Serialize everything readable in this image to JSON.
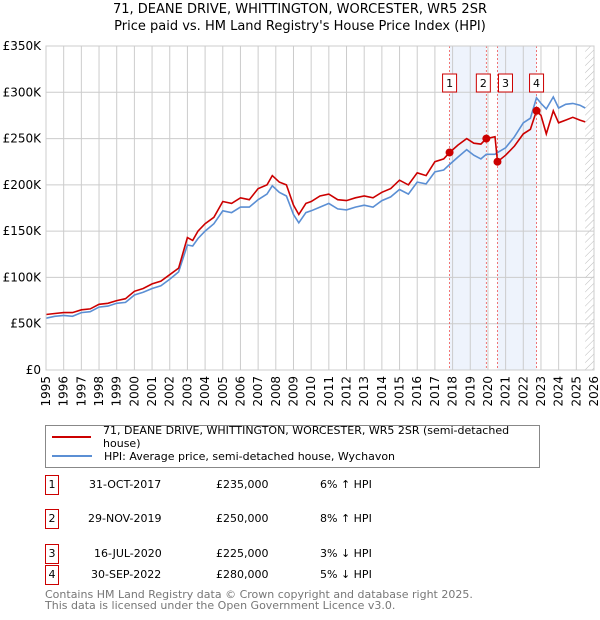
{
  "chart_data": {
    "type": "line",
    "title": "71, DEANE DRIVE, WHITTINGTON, WORCESTER, WR5 2SR",
    "subtitle": "Price paid vs. HM Land Registry's House Price Index (HPI)",
    "xlim": [
      1995,
      2026
    ],
    "ylim": [
      0,
      350000
    ],
    "y_ticks": [
      {
        "v": 0,
        "label": "£0"
      },
      {
        "v": 50000,
        "label": "£50K"
      },
      {
        "v": 100000,
        "label": "£100K"
      },
      {
        "v": 150000,
        "label": "£150K"
      },
      {
        "v": 200000,
        "label": "£200K"
      },
      {
        "v": 250000,
        "label": "£250K"
      },
      {
        "v": 300000,
        "label": "£300K"
      },
      {
        "v": 350000,
        "label": "£350K"
      }
    ],
    "x_ticks": [
      "1995",
      "1996",
      "1997",
      "1998",
      "1999",
      "2000",
      "2001",
      "2002",
      "2003",
      "2004",
      "2005",
      "2006",
      "2007",
      "2008",
      "2009",
      "2010",
      "2011",
      "2012",
      "2013",
      "2014",
      "2015",
      "2016",
      "2017",
      "2018",
      "2019",
      "2020",
      "2021",
      "2022",
      "2023",
      "2024",
      "2025",
      "2026"
    ],
    "grid": true,
    "series": [
      {
        "name": "71, DEANE DRIVE, WHITTINGTON, WORCESTER, WR5 2SR (semi-detached house)",
        "color": "#cc0000",
        "x": [
          1995,
          1995.5,
          1996,
          1996.5,
          1997,
          1997.5,
          1998,
          1998.5,
          1999,
          1999.5,
          2000,
          2000.5,
          2001,
          2001.5,
          2002,
          2002.5,
          2003,
          2003.3,
          2003.6,
          2004,
          2004.5,
          2005,
          2005.5,
          2006,
          2006.5,
          2007,
          2007.5,
          2007.8,
          2008.2,
          2008.6,
          2009,
          2009.3,
          2009.7,
          2010,
          2010.5,
          2011,
          2011.5,
          2012,
          2012.5,
          2013,
          2013.5,
          2014,
          2014.5,
          2015,
          2015.5,
          2016,
          2016.5,
          2017,
          2017.5,
          2017.83,
          2018.3,
          2018.8,
          2019.2,
          2019.6,
          2019.91,
          2020.4,
          2020.54,
          2021,
          2021.5,
          2022,
          2022.4,
          2022.75,
          2023,
          2023.3,
          2023.7,
          2024,
          2024.4,
          2024.8,
          2025.2,
          2025.5
        ],
        "y": [
          60000,
          61000,
          62000,
          62000,
          65000,
          66000,
          71000,
          72000,
          75000,
          77000,
          85000,
          88000,
          93000,
          96000,
          103000,
          110000,
          143000,
          140000,
          150000,
          158000,
          165000,
          182000,
          180000,
          186000,
          184000,
          196000,
          200000,
          210000,
          203000,
          200000,
          178000,
          168000,
          180000,
          182000,
          188000,
          190000,
          184000,
          183000,
          186000,
          188000,
          186000,
          192000,
          196000,
          205000,
          200000,
          213000,
          210000,
          225000,
          228000,
          235000,
          243000,
          250000,
          245000,
          244000,
          250000,
          252000,
          225000,
          232000,
          242000,
          255000,
          260000,
          280000,
          275000,
          255000,
          280000,
          267000,
          270000,
          273000,
          270000,
          268000
        ]
      },
      {
        "name": "HPI: Average price, semi-detached house, Wychavon",
        "color": "#5b8fd4",
        "x": [
          1995,
          1995.5,
          1996,
          1996.5,
          1997,
          1997.5,
          1998,
          1998.5,
          1999,
          1999.5,
          2000,
          2000.5,
          2001,
          2001.5,
          2002,
          2002.5,
          2003,
          2003.3,
          2003.6,
          2004,
          2004.5,
          2005,
          2005.5,
          2006,
          2006.5,
          2007,
          2007.5,
          2007.8,
          2008.2,
          2008.6,
          2009,
          2009.3,
          2009.7,
          2010,
          2010.5,
          2011,
          2011.5,
          2012,
          2012.5,
          2013,
          2013.5,
          2014,
          2014.5,
          2015,
          2015.5,
          2016,
          2016.5,
          2017,
          2017.5,
          2017.83,
          2018.3,
          2018.8,
          2019.2,
          2019.6,
          2019.91,
          2020.4,
          2020.54,
          2021,
          2021.5,
          2022,
          2022.4,
          2022.75,
          2023,
          2023.3,
          2023.7,
          2024,
          2024.4,
          2024.8,
          2025.2,
          2025.5
        ],
        "y": [
          56000,
          58000,
          59000,
          58000,
          62000,
          63000,
          68000,
          69000,
          72000,
          73000,
          81000,
          84000,
          88000,
          91000,
          98000,
          106000,
          135000,
          134000,
          142000,
          150000,
          158000,
          172000,
          170000,
          176000,
          176000,
          184000,
          190000,
          199000,
          192000,
          188000,
          168000,
          159000,
          170000,
          172000,
          176000,
          180000,
          174000,
          173000,
          176000,
          178000,
          176000,
          183000,
          187000,
          195000,
          190000,
          203000,
          201000,
          214000,
          216000,
          222000,
          230000,
          238000,
          232000,
          228000,
          233000,
          233000,
          235000,
          240000,
          252000,
          267000,
          272000,
          294000,
          288000,
          282000,
          295000,
          283000,
          287000,
          288000,
          286000,
          283000
        ]
      }
    ],
    "sales": [
      {
        "label": "1",
        "x": 2017.83,
        "y": 235000
      },
      {
        "label": "2",
        "x": 2019.91,
        "y": 250000
      },
      {
        "label": "3",
        "x": 2020.54,
        "y": 225000
      },
      {
        "label": "4",
        "x": 2022.75,
        "y": 280000
      }
    ],
    "shaded_ranges": [
      [
        2017.83,
        2019.91
      ],
      [
        2020.54,
        2022.75
      ]
    ],
    "hatched_from": 2025.5
  },
  "legend": {
    "item1": "71, DEANE DRIVE, WHITTINGTON, WORCESTER, WR5 2SR (semi-detached house)",
    "item2": "HPI: Average price, semi-detached house, Wychavon"
  },
  "transactions": [
    {
      "num": "1",
      "date": "31-OCT-2017",
      "price": "£235,000",
      "hpi": "6% ↑ HPI"
    },
    {
      "num": "2",
      "date": "29-NOV-2019",
      "price": "£250,000",
      "hpi": "8% ↑ HPI"
    },
    {
      "num": "3",
      "date": "16-JUL-2020",
      "price": "£225,000",
      "hpi": "3% ↓ HPI"
    },
    {
      "num": "4",
      "date": "30-SEP-2022",
      "price": "£280,000",
      "hpi": "5% ↓ HPI"
    }
  ],
  "footer": {
    "line1": "Contains HM Land Registry data © Crown copyright and database right 2025.",
    "line2": "This data is licensed under the Open Government Licence v3.0."
  }
}
